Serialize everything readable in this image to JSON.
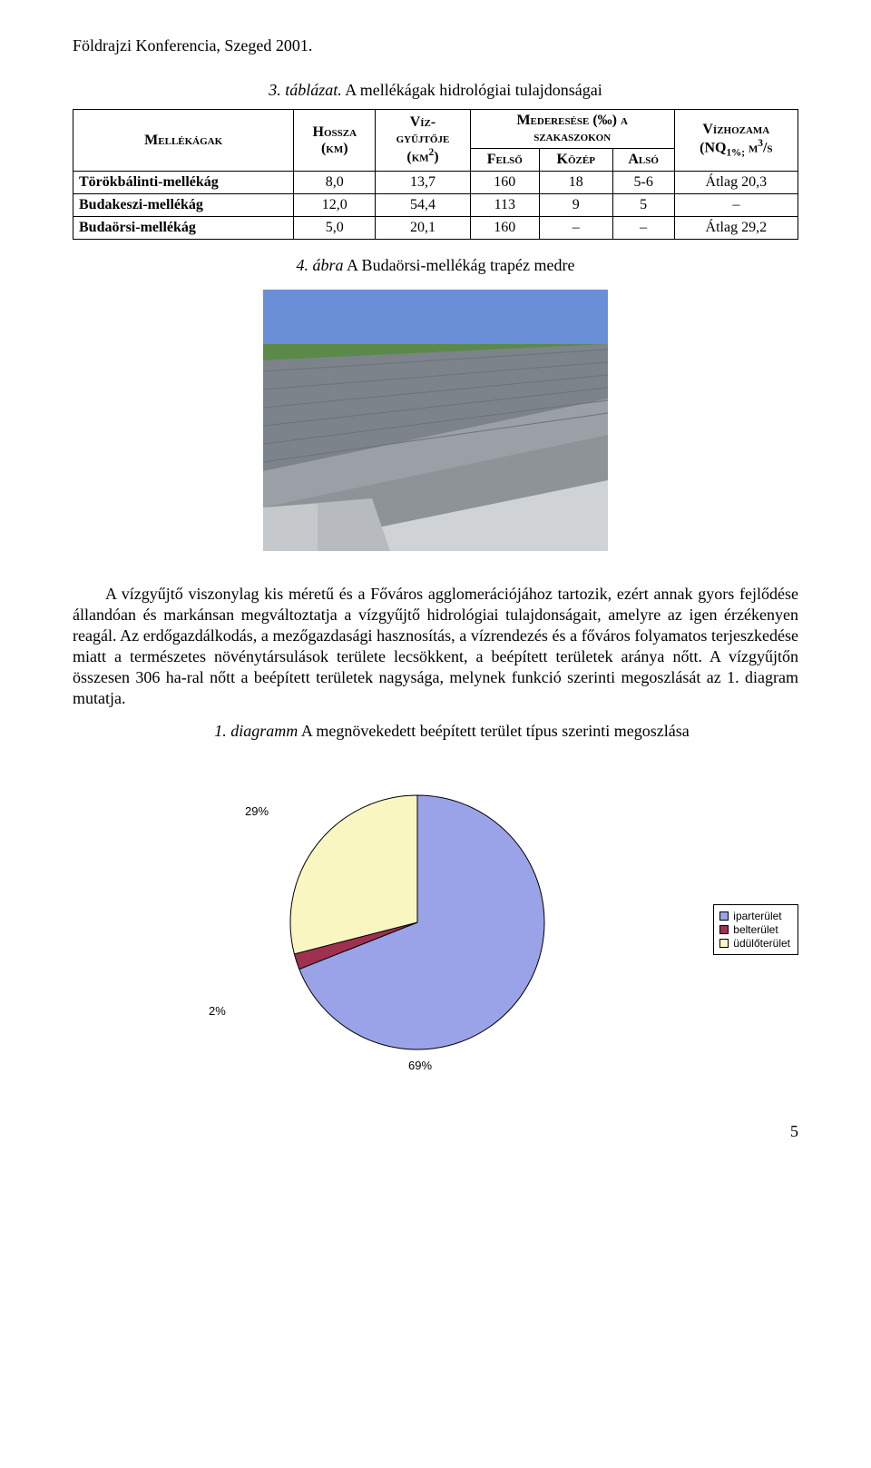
{
  "header": "Földrajzi Konferencia, Szeged 2001.",
  "table": {
    "caption_num": "3. táblázat.",
    "caption_text": " A mellékágak hidrológiai tulajdonságai",
    "head": {
      "c1": "Mellékágak",
      "c2_l1": "Hossza",
      "c2_l2": "(km)",
      "c3_l1": "Víz-",
      "c3_l2": "gyűjtője",
      "c3_l3": "(km",
      "c3_sup": "2",
      "c3_l3b": ")",
      "c4_l1": "Mederesése (‰) a",
      "c4_l2": "szakaszokon",
      "c4a": "Felső",
      "c4b": "Közép",
      "c4c": "Alsó",
      "c5_l1": "Vízhozama",
      "c5_l2a": "(NQ",
      "c5_sub": "1%;",
      "c5_l2b": " m",
      "c5_sup": "3",
      "c5_l2c": "/s"
    },
    "rows": [
      {
        "name": "Törökbálinti-mellékág",
        "hossza": "8,0",
        "viz": "13,7",
        "felso": "160",
        "kozep": "18",
        "also": "5-6",
        "hozam": "Átlag 20,3"
      },
      {
        "name": "Budakeszi-mellékág",
        "hossza": "12,0",
        "viz": "54,4",
        "felso": "113",
        "kozep": "9",
        "also": "5",
        "hozam": "–"
      },
      {
        "name": "Budaörsi-mellékág",
        "hossza": "5,0",
        "viz": "20,1",
        "felso": "160",
        "kozep": "–",
        "also": "–",
        "hozam": "Átlag 29,2"
      }
    ]
  },
  "figure": {
    "num": "4. ábra",
    "text": " A Budaörsi-mellékág trapéz medre"
  },
  "paragraph": "A vízgyűjtő viszonylag kis méretű és a Főváros agglomerációjához tartozik, ezért annak gyors fejlődése állandóan és markánsan megváltoztatja a vízgyűjtő hidrológiai tulajdonságait, amelyre az igen érzékenyen reagál. Az erdőgazdálkodás, a mezőgazdasági hasznosítás, a vízrendezés és a főváros folyamatos terjeszkedése miatt a természetes növénytársulások területe lecsökkent, a beépített területek aránya nőtt. A vízgyűjtőn összesen 306 ha-ral nőtt a beépített területek nagysága, melynek funkció szerinti megoszlását az 1. diagram mutatja.",
  "diagram": {
    "num": "1. diagramm",
    "text": " A megnövekedett beépített terület típus szerinti megoszlása",
    "slices": [
      {
        "label": "iparterület",
        "value": 69,
        "color": "#9aa3e7"
      },
      {
        "label": "belterület",
        "value": 2,
        "color": "#a03050"
      },
      {
        "label": "üdülőterület",
        "value": 29,
        "color": "#f9f6c2"
      }
    ],
    "labels": {
      "p29": "29%",
      "p2": "2%",
      "p69": "69%"
    },
    "legend": [
      "iparterület",
      "belterület",
      "üdülőterület"
    ],
    "legend_colors": [
      "#9aa3e7",
      "#a03050",
      "#f9f6c2"
    ]
  },
  "page_number": "5"
}
